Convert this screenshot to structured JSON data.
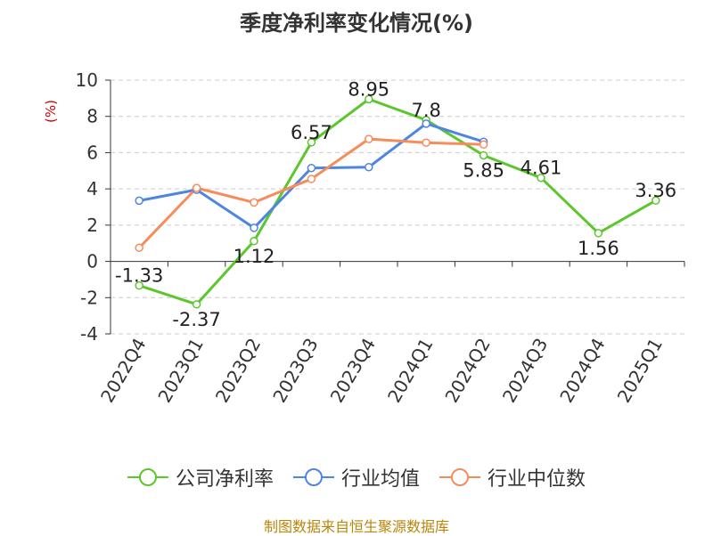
{
  "chart_data": {
    "type": "line",
    "title": "季度净利率变化情况(%)",
    "ylabel": "(%)",
    "categories": [
      "2022Q4",
      "2023Q1",
      "2023Q2",
      "2023Q3",
      "2023Q4",
      "2024Q1",
      "2024Q2",
      "2024Q3",
      "2024Q4",
      "2025Q1"
    ],
    "ylim": [
      -4,
      10
    ],
    "yticks": [
      -4,
      -2,
      0,
      2,
      4,
      6,
      8,
      10
    ],
    "grid": true,
    "legend_position": "bottom",
    "series": [
      {
        "name": "公司净利率",
        "color": "#5cc72c",
        "values": [
          -1.33,
          -2.37,
          1.12,
          6.57,
          8.95,
          7.8,
          5.85,
          4.61,
          1.56,
          3.36
        ],
        "labels": [
          "-1.33",
          "-2.37",
          "1.12",
          "6.57",
          "8.95",
          "7.8",
          "5.85",
          "4.61",
          "1.56",
          "3.36"
        ]
      },
      {
        "name": "行业均值",
        "color": "#4e85e0",
        "values": [
          3.35,
          3.95,
          1.85,
          5.15,
          5.2,
          7.6,
          6.6,
          null,
          null,
          null
        ]
      },
      {
        "name": "行业中位数",
        "color": "#f58c5a",
        "values": [
          0.75,
          4.05,
          3.25,
          4.55,
          6.75,
          6.55,
          6.45,
          null,
          null,
          null
        ]
      }
    ]
  },
  "source": "制图数据来自恒生聚源数据库"
}
